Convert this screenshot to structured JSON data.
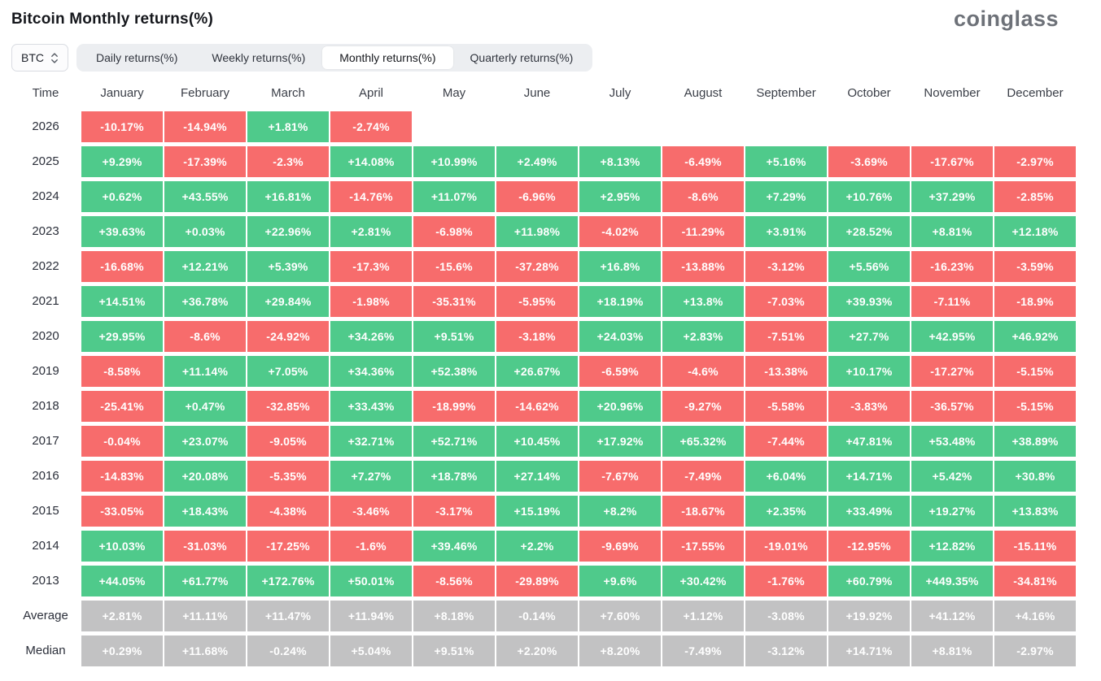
{
  "page": {
    "title": "Bitcoin Monthly returns(%)",
    "logo": "coinglass"
  },
  "controls": {
    "symbol_select": {
      "value": "BTC"
    },
    "tabs": [
      {
        "label": "Daily returns(%)",
        "active": false
      },
      {
        "label": "Weekly returns(%)",
        "active": false
      },
      {
        "label": "Monthly returns(%)",
        "active": true
      },
      {
        "label": "Quarterly returns(%)",
        "active": false
      }
    ]
  },
  "colors": {
    "positive": "#4fca8b",
    "negative": "#f76c6c",
    "summary": "#c2c2c3"
  },
  "table": {
    "time_header": "Time",
    "columns": [
      "January",
      "February",
      "March",
      "April",
      "May",
      "June",
      "July",
      "August",
      "September",
      "October",
      "November",
      "December"
    ],
    "rows": [
      {
        "label": "2026",
        "summary": false,
        "values": [
          "-10.17%",
          "-14.94%",
          "+1.81%",
          "-2.74%",
          "",
          "",
          "",
          "",
          "",
          "",
          "",
          ""
        ]
      },
      {
        "label": "2025",
        "summary": false,
        "values": [
          "+9.29%",
          "-17.39%",
          "-2.3%",
          "+14.08%",
          "+10.99%",
          "+2.49%",
          "+8.13%",
          "-6.49%",
          "+5.16%",
          "-3.69%",
          "-17.67%",
          "-2.97%"
        ]
      },
      {
        "label": "2024",
        "summary": false,
        "values": [
          "+0.62%",
          "+43.55%",
          "+16.81%",
          "-14.76%",
          "+11.07%",
          "-6.96%",
          "+2.95%",
          "-8.6%",
          "+7.29%",
          "+10.76%",
          "+37.29%",
          "-2.85%"
        ]
      },
      {
        "label": "2023",
        "summary": false,
        "values": [
          "+39.63%",
          "+0.03%",
          "+22.96%",
          "+2.81%",
          "-6.98%",
          "+11.98%",
          "-4.02%",
          "-11.29%",
          "+3.91%",
          "+28.52%",
          "+8.81%",
          "+12.18%"
        ]
      },
      {
        "label": "2022",
        "summary": false,
        "values": [
          "-16.68%",
          "+12.21%",
          "+5.39%",
          "-17.3%",
          "-15.6%",
          "-37.28%",
          "+16.8%",
          "-13.88%",
          "-3.12%",
          "+5.56%",
          "-16.23%",
          "-3.59%"
        ]
      },
      {
        "label": "2021",
        "summary": false,
        "values": [
          "+14.51%",
          "+36.78%",
          "+29.84%",
          "-1.98%",
          "-35.31%",
          "-5.95%",
          "+18.19%",
          "+13.8%",
          "-7.03%",
          "+39.93%",
          "-7.11%",
          "-18.9%"
        ]
      },
      {
        "label": "2020",
        "summary": false,
        "values": [
          "+29.95%",
          "-8.6%",
          "-24.92%",
          "+34.26%",
          "+9.51%",
          "-3.18%",
          "+24.03%",
          "+2.83%",
          "-7.51%",
          "+27.7%",
          "+42.95%",
          "+46.92%"
        ]
      },
      {
        "label": "2019",
        "summary": false,
        "values": [
          "-8.58%",
          "+11.14%",
          "+7.05%",
          "+34.36%",
          "+52.38%",
          "+26.67%",
          "-6.59%",
          "-4.6%",
          "-13.38%",
          "+10.17%",
          "-17.27%",
          "-5.15%"
        ]
      },
      {
        "label": "2018",
        "summary": false,
        "values": [
          "-25.41%",
          "+0.47%",
          "-32.85%",
          "+33.43%",
          "-18.99%",
          "-14.62%",
          "+20.96%",
          "-9.27%",
          "-5.58%",
          "-3.83%",
          "-36.57%",
          "-5.15%"
        ]
      },
      {
        "label": "2017",
        "summary": false,
        "values": [
          "-0.04%",
          "+23.07%",
          "-9.05%",
          "+32.71%",
          "+52.71%",
          "+10.45%",
          "+17.92%",
          "+65.32%",
          "-7.44%",
          "+47.81%",
          "+53.48%",
          "+38.89%"
        ]
      },
      {
        "label": "2016",
        "summary": false,
        "values": [
          "-14.83%",
          "+20.08%",
          "-5.35%",
          "+7.27%",
          "+18.78%",
          "+27.14%",
          "-7.67%",
          "-7.49%",
          "+6.04%",
          "+14.71%",
          "+5.42%",
          "+30.8%"
        ]
      },
      {
        "label": "2015",
        "summary": false,
        "values": [
          "-33.05%",
          "+18.43%",
          "-4.38%",
          "-3.46%",
          "-3.17%",
          "+15.19%",
          "+8.2%",
          "-18.67%",
          "+2.35%",
          "+33.49%",
          "+19.27%",
          "+13.83%"
        ]
      },
      {
        "label": "2014",
        "summary": false,
        "values": [
          "+10.03%",
          "-31.03%",
          "-17.25%",
          "-1.6%",
          "+39.46%",
          "+2.2%",
          "-9.69%",
          "-17.55%",
          "-19.01%",
          "-12.95%",
          "+12.82%",
          "-15.11%"
        ]
      },
      {
        "label": "2013",
        "summary": false,
        "values": [
          "+44.05%",
          "+61.77%",
          "+172.76%",
          "+50.01%",
          "-8.56%",
          "-29.89%",
          "+9.6%",
          "+30.42%",
          "-1.76%",
          "+60.79%",
          "+449.35%",
          "-34.81%"
        ]
      },
      {
        "label": "Average",
        "summary": true,
        "values": [
          "+2.81%",
          "+11.11%",
          "+11.47%",
          "+11.94%",
          "+8.18%",
          "-0.14%",
          "+7.60%",
          "+1.12%",
          "-3.08%",
          "+19.92%",
          "+41.12%",
          "+4.16%"
        ]
      },
      {
        "label": "Median",
        "summary": true,
        "values": [
          "+0.29%",
          "+11.68%",
          "-0.24%",
          "+5.04%",
          "+9.51%",
          "+2.20%",
          "+8.20%",
          "-7.49%",
          "-3.12%",
          "+14.71%",
          "+8.81%",
          "-2.97%"
        ]
      }
    ]
  }
}
